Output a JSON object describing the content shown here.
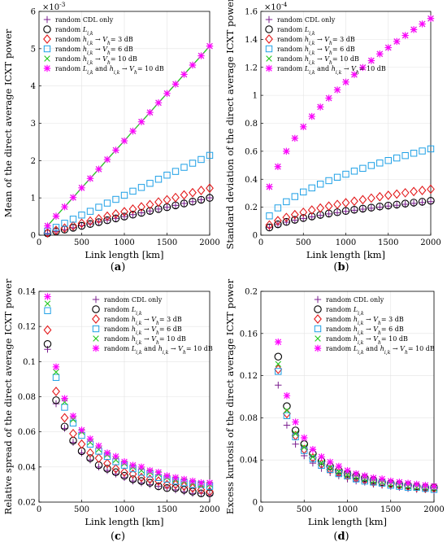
{
  "series_styles": [
    {
      "key": "cdl",
      "color": "#7b1f8f",
      "marker": "plus"
    },
    {
      "key": "L",
      "color": "#000000",
      "marker": "circle"
    },
    {
      "key": "h3",
      "color": "#e31a1c",
      "marker": "diamond"
    },
    {
      "key": "h6",
      "color": "#1ea0e6",
      "marker": "square"
    },
    {
      "key": "h10",
      "color": "#22c61e",
      "marker": "x"
    },
    {
      "key": "Lh10",
      "color": "#ff00ff",
      "marker": "star"
    }
  ],
  "chart_data": [
    {
      "type": "scatter",
      "caption": "(a)",
      "xlabel": "Link length [km]",
      "ylabel": "Mean of the direct average ICXT power",
      "multiplier": "×10",
      "multiplier_exp": "-3",
      "xlim": [
        0,
        2000
      ],
      "ylim": [
        0,
        6
      ],
      "xticks": [
        "0",
        "500",
        "1000",
        "1500",
        "2000"
      ],
      "yticks": [
        "0",
        "1",
        "2",
        "3",
        "4",
        "5",
        "6"
      ],
      "legend_position": "top-left",
      "legend": [
        "random CDL only",
        "random L",
        "random h → V = 3 dB",
        "random h → V = 6 dB",
        "random h → V = 10 dB",
        "random L and h → V = 10 dB"
      ],
      "x": [
        100,
        200,
        300,
        400,
        500,
        600,
        700,
        800,
        900,
        1000,
        1100,
        1200,
        1300,
        1400,
        1500,
        1600,
        1700,
        1800,
        1900,
        2000
      ],
      "series": [
        {
          "values": [
            0.05,
            0.1,
            0.15,
            0.2,
            0.25,
            0.3,
            0.35,
            0.4,
            0.45,
            0.5,
            0.55,
            0.6,
            0.65,
            0.7,
            0.75,
            0.8,
            0.85,
            0.9,
            0.95,
            1.0
          ]
        },
        {
          "values": [
            0.05,
            0.1,
            0.15,
            0.2,
            0.25,
            0.3,
            0.35,
            0.4,
            0.45,
            0.5,
            0.55,
            0.6,
            0.65,
            0.7,
            0.75,
            0.8,
            0.85,
            0.9,
            0.95,
            1.0
          ]
        },
        {
          "values": [
            0.06,
            0.13,
            0.19,
            0.25,
            0.32,
            0.38,
            0.44,
            0.51,
            0.57,
            0.63,
            0.7,
            0.76,
            0.82,
            0.89,
            0.95,
            1.01,
            1.08,
            1.14,
            1.2,
            1.26
          ]
        },
        {
          "values": [
            0.11,
            0.21,
            0.32,
            0.43,
            0.54,
            0.64,
            0.75,
            0.86,
            0.96,
            1.07,
            1.18,
            1.28,
            1.39,
            1.5,
            1.61,
            1.71,
            1.82,
            1.93,
            2.03,
            2.14
          ]
        },
        {
          "values": [
            0.25,
            0.51,
            0.76,
            1.01,
            1.27,
            1.52,
            1.77,
            2.03,
            2.28,
            2.53,
            2.79,
            3.04,
            3.29,
            3.55,
            3.8,
            4.05,
            4.31,
            4.56,
            4.81,
            5.07
          ]
        },
        {
          "values": [
            0.25,
            0.51,
            0.76,
            1.01,
            1.27,
            1.52,
            1.77,
            2.03,
            2.28,
            2.53,
            2.79,
            3.04,
            3.29,
            3.55,
            3.8,
            4.05,
            4.31,
            4.56,
            4.81,
            5.07
          ]
        }
      ],
      "lines_on": [
        "h10"
      ]
    },
    {
      "type": "scatter",
      "caption": "(b)",
      "xlabel": "Link length [km]",
      "ylabel": "Standard deviation of the direct average ICXT power",
      "multiplier": "×10",
      "multiplier_exp": "-4",
      "xlim": [
        0,
        2000
      ],
      "ylim": [
        0,
        1.6
      ],
      "xticks": [
        "0",
        "500",
        "1000",
        "1500",
        "2000"
      ],
      "yticks": [
        "0",
        "0.2",
        "0.4",
        "0.6",
        "0.8",
        "1",
        "1.2",
        "1.4",
        "1.6"
      ],
      "legend_position": "top-left",
      "legend": [
        "random CDL only",
        "random L",
        "random h → V = 3 dB",
        "random h → V = 6 dB",
        "random h → V = 10 dB",
        "random L and h → V = 10 dB"
      ],
      "x": [
        100,
        200,
        300,
        400,
        500,
        600,
        700,
        800,
        900,
        1000,
        1100,
        1200,
        1300,
        1400,
        1500,
        1600,
        1700,
        1800,
        1900,
        2000
      ],
      "series": [
        {
          "values": [
            0.054,
            0.076,
            0.093,
            0.107,
            0.12,
            0.131,
            0.142,
            0.152,
            0.161,
            0.17,
            0.178,
            0.186,
            0.193,
            0.2,
            0.208,
            0.214,
            0.221,
            0.228,
            0.234,
            0.24
          ]
        },
        {
          "values": [
            0.055,
            0.078,
            0.095,
            0.11,
            0.123,
            0.134,
            0.145,
            0.155,
            0.164,
            0.173,
            0.182,
            0.19,
            0.197,
            0.205,
            0.212,
            0.219,
            0.226,
            0.233,
            0.239,
            0.246
          ]
        },
        {
          "values": [
            0.073,
            0.104,
            0.127,
            0.147,
            0.164,
            0.18,
            0.194,
            0.208,
            0.22,
            0.232,
            0.243,
            0.254,
            0.265,
            0.275,
            0.285,
            0.294,
            0.303,
            0.312,
            0.32,
            0.329
          ]
        },
        {
          "values": [
            0.138,
            0.195,
            0.239,
            0.276,
            0.309,
            0.338,
            0.365,
            0.39,
            0.414,
            0.436,
            0.458,
            0.478,
            0.498,
            0.516,
            0.534,
            0.552,
            0.569,
            0.586,
            0.602,
            0.617
          ]
        },
        {
          "values": [
            0.346,
            0.49,
            0.6,
            0.693,
            0.775,
            0.849,
            0.917,
            0.98,
            1.039,
            1.095,
            1.148,
            1.199,
            1.248,
            1.296,
            1.341,
            1.385,
            1.428,
            1.47,
            1.51,
            1.549
          ]
        },
        {
          "values": [
            0.346,
            0.49,
            0.6,
            0.693,
            0.775,
            0.849,
            0.917,
            0.98,
            1.039,
            1.095,
            1.148,
            1.199,
            1.248,
            1.296,
            1.341,
            1.385,
            1.428,
            1.47,
            1.51,
            1.549
          ]
        }
      ],
      "lines_on": []
    },
    {
      "type": "scatter",
      "caption": "(c)",
      "xlabel": "Link length [km]",
      "ylabel": "Relative spread of the direct average ICXT power",
      "xlim": [
        0,
        2000
      ],
      "ylim": [
        0.02,
        0.14
      ],
      "xticks": [
        "0",
        "500",
        "1000",
        "1500",
        "2000"
      ],
      "yticks": [
        "0.02",
        "0.04",
        "0.06",
        "0.08",
        "0.1",
        "0.12",
        "0.14"
      ],
      "legend_position": "top-right",
      "legend": [
        "random CDL only",
        "random L",
        "random h → V = 3 dB",
        "random h → V = 6 dB",
        "random h → V = 10 dB",
        "random L and h → V = 10 dB"
      ],
      "x": [
        100,
        200,
        300,
        400,
        500,
        600,
        700,
        800,
        900,
        1000,
        1100,
        1200,
        1300,
        1400,
        1500,
        1600,
        1700,
        1800,
        1900,
        2000
      ],
      "series": [
        {
          "values": [
            0.107,
            0.076,
            0.062,
            0.054,
            0.048,
            0.044,
            0.04,
            0.038,
            0.036,
            0.034,
            0.032,
            0.031,
            0.03,
            0.029,
            0.028,
            0.027,
            0.026,
            0.025,
            0.025,
            0.024
          ]
        },
        {
          "values": [
            0.11,
            0.078,
            0.063,
            0.055,
            0.049,
            0.045,
            0.041,
            0.039,
            0.037,
            0.035,
            0.033,
            0.032,
            0.031,
            0.029,
            0.028,
            0.028,
            0.027,
            0.026,
            0.025,
            0.025
          ]
        },
        {
          "values": [
            0.118,
            0.083,
            0.068,
            0.059,
            0.053,
            0.048,
            0.045,
            0.042,
            0.039,
            0.037,
            0.036,
            0.034,
            0.033,
            0.032,
            0.03,
            0.03,
            0.029,
            0.028,
            0.027,
            0.026
          ]
        },
        {
          "values": [
            0.129,
            0.091,
            0.074,
            0.065,
            0.058,
            0.053,
            0.049,
            0.046,
            0.043,
            0.041,
            0.039,
            0.037,
            0.036,
            0.034,
            0.033,
            0.032,
            0.031,
            0.03,
            0.03,
            0.029
          ]
        },
        {
          "values": [
            0.133,
            0.094,
            0.077,
            0.067,
            0.06,
            0.054,
            0.05,
            0.047,
            0.044,
            0.042,
            0.04,
            0.038,
            0.037,
            0.036,
            0.034,
            0.033,
            0.032,
            0.031,
            0.03,
            0.03
          ]
        },
        {
          "values": [
            0.137,
            0.097,
            0.079,
            0.069,
            0.061,
            0.056,
            0.052,
            0.048,
            0.046,
            0.043,
            0.041,
            0.04,
            0.038,
            0.037,
            0.035,
            0.034,
            0.033,
            0.032,
            0.031,
            0.031
          ]
        }
      ],
      "lines_on": []
    },
    {
      "type": "scatter",
      "caption": "(d)",
      "xlabel": "Link length [km]",
      "ylabel": "Excess kurtosis of the direct average ICXT power",
      "xlim": [
        0,
        2000
      ],
      "ylim": [
        0,
        0.2
      ],
      "xticks": [
        "0",
        "500",
        "1000",
        "1500",
        "2000"
      ],
      "yticks": [
        "0",
        "0.04",
        "0.08",
        "0.12",
        "0.16",
        "0.2"
      ],
      "legend_position": "top-right",
      "legend": [
        "random CDL only",
        "random L",
        "random h → V = 3 dB",
        "random h → V = 6 dB",
        "random h → V = 10 dB",
        "random L and h → V = 10 dB"
      ],
      "x": [
        200,
        300,
        400,
        500,
        600,
        700,
        800,
        900,
        1000,
        1100,
        1200,
        1300,
        1400,
        1500,
        1600,
        1700,
        1800,
        1900,
        2000
      ],
      "series": [
        {
          "values": [
            0.111,
            0.073,
            0.055,
            0.044,
            0.037,
            0.032,
            0.028,
            0.025,
            0.022,
            0.02,
            0.019,
            0.017,
            0.016,
            0.015,
            0.014,
            0.013,
            0.012,
            0.012,
            0.011
          ]
        },
        {
          "values": [
            0.138,
            0.091,
            0.068,
            0.055,
            0.046,
            0.039,
            0.034,
            0.03,
            0.027,
            0.025,
            0.023,
            0.021,
            0.019,
            0.018,
            0.017,
            0.016,
            0.015,
            0.014,
            0.014
          ]
        },
        {
          "values": [
            0.126,
            0.084,
            0.063,
            0.05,
            0.042,
            0.036,
            0.031,
            0.028,
            0.025,
            0.023,
            0.021,
            0.019,
            0.018,
            0.017,
            0.016,
            0.015,
            0.014,
            0.013,
            0.013
          ]
        },
        {
          "values": [
            0.124,
            0.082,
            0.062,
            0.049,
            0.041,
            0.035,
            0.031,
            0.027,
            0.025,
            0.022,
            0.02,
            0.019,
            0.018,
            0.016,
            0.015,
            0.014,
            0.014,
            0.013,
            0.012
          ]
        },
        {
          "values": [
            0.131,
            0.087,
            0.065,
            0.052,
            0.043,
            0.037,
            0.033,
            0.029,
            0.026,
            0.024,
            0.022,
            0.02,
            0.019,
            0.017,
            0.016,
            0.015,
            0.014,
            0.014,
            0.013
          ]
        },
        {
          "values": [
            0.152,
            0.101,
            0.076,
            0.061,
            0.05,
            0.043,
            0.038,
            0.034,
            0.03,
            0.027,
            0.025,
            0.023,
            0.022,
            0.02,
            0.019,
            0.018,
            0.017,
            0.016,
            0.015
          ]
        }
      ],
      "lines_on": []
    }
  ]
}
